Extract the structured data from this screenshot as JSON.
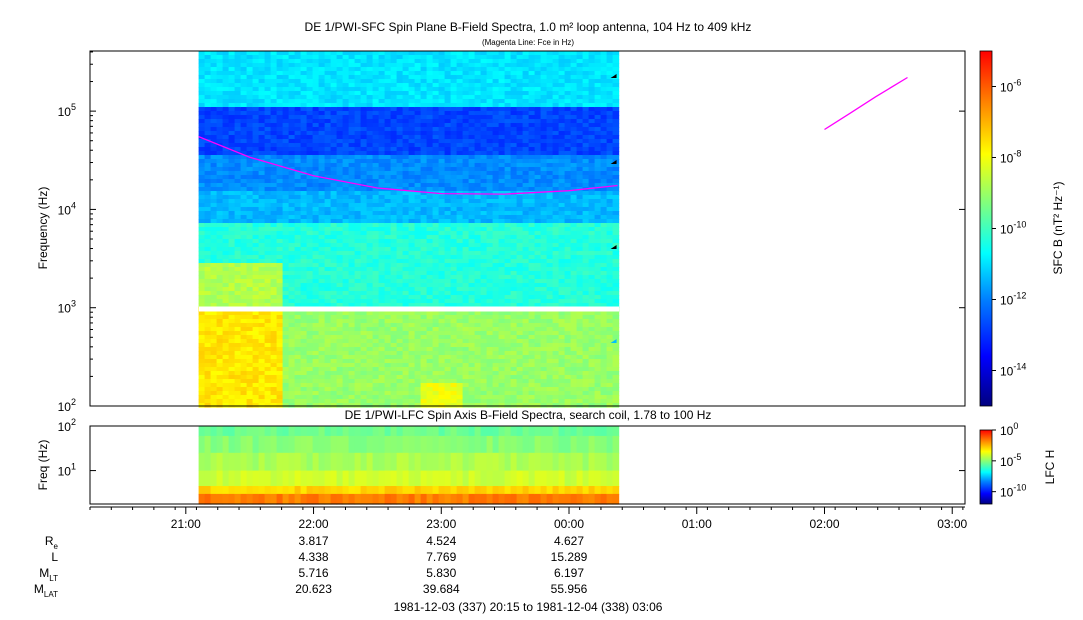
{
  "title": "DE 1/PWI-SFC  Spin Plane B-Field Spectra, 1.0 m² loop antenna, 104 Hz to 409 kHz",
  "subtitle": "(Magenta Line: Fce in Hz)",
  "colors": {
    "fce_line": "#ff00ff",
    "colormap": [
      "#00007f",
      "#0000ff",
      "#007fff",
      "#00ffff",
      "#7fff7f",
      "#ffff00",
      "#ff7f00",
      "#ff0000"
    ]
  },
  "chart_data": [
    {
      "type": "heatmap",
      "panel": "SFC",
      "title": "DE 1/PWI-SFC  Spin Plane B-Field Spectra, 1.0 m² loop antenna, 104 Hz to 409 kHz",
      "ylabel": "Frequency (Hz)",
      "yscale": "log",
      "ylim": [
        100,
        409000
      ],
      "yticks": [
        {
          "base": "10",
          "exp": "2"
        },
        {
          "base": "10",
          "exp": "3"
        },
        {
          "base": "10",
          "exp": "4"
        },
        {
          "base": "10",
          "exp": "5"
        }
      ],
      "xlim_hours": [
        20.25,
        27.1
      ],
      "data_coverage_hours": [
        21.1,
        24.38
      ],
      "colorbar": {
        "label": "SFC B (nT² Hz⁻¹)",
        "scale": "log",
        "range_exp": [
          -15,
          -5
        ],
        "ticks": [
          {
            "base": "10",
            "exp": "-6"
          },
          {
            "base": "10",
            "exp": "-8"
          },
          {
            "base": "10",
            "exp": "-10"
          },
          {
            "base": "10",
            "exp": "-12"
          },
          {
            "base": "10",
            "exp": "-14"
          }
        ]
      },
      "fce_line": {
        "name": "Fce in Hz",
        "segments": [
          {
            "x": [
              21.1,
              21.5,
              22.0,
              22.5,
              23.0,
              23.5,
              24.0,
              24.38
            ],
            "y": [
              55000,
              34000,
              22000,
              16500,
              14500,
              14300,
              15500,
              17500
            ]
          },
          {
            "x": [
              26.0,
              26.2,
              26.4,
              26.65
            ],
            "y": [
              65000,
              95000,
              140000,
              220000
            ]
          }
        ]
      }
    },
    {
      "type": "heatmap",
      "panel": "LFC",
      "title": "DE 1/PWI-LFC  Spin Axis B-Field Spectra, search coil, 1.78 to 100 Hz",
      "ylabel": "Freq (Hz)",
      "yscale": "log",
      "ylim": [
        1.78,
        100
      ],
      "yticks": [
        {
          "base": "10",
          "exp": "1"
        },
        {
          "base": "10",
          "exp": "2"
        }
      ],
      "colorbar": {
        "label": "LFC H",
        "scale": "log",
        "range_exp": [
          -12,
          0
        ],
        "ticks": [
          {
            "base": "10",
            "exp": "0"
          },
          {
            "base": "10",
            "exp": "-5"
          },
          {
            "base": "10",
            "exp": "-10"
          }
        ]
      }
    }
  ],
  "time_axis": {
    "ticks": [
      "21:00",
      "22:00",
      "23:00",
      "00:00",
      "01:00",
      "02:00",
      "03:00"
    ]
  },
  "ephemeris": {
    "rows": [
      {
        "label": "R",
        "sub": "e",
        "values": [
          "3.817",
          "4.524",
          "4.627"
        ]
      },
      {
        "label": "L",
        "sub": "",
        "values": [
          "4.338",
          "7.769",
          "15.289"
        ]
      },
      {
        "label": "M",
        "sub": "LT",
        "values": [
          "5.716",
          "5.830",
          "6.197"
        ]
      },
      {
        "label": "M",
        "sub": "LAT",
        "values": [
          "20.623",
          "39.684",
          "55.956"
        ]
      }
    ]
  },
  "time_range": "1981-12-03 (337) 20:15 to 1981-12-04 (338) 03:06"
}
